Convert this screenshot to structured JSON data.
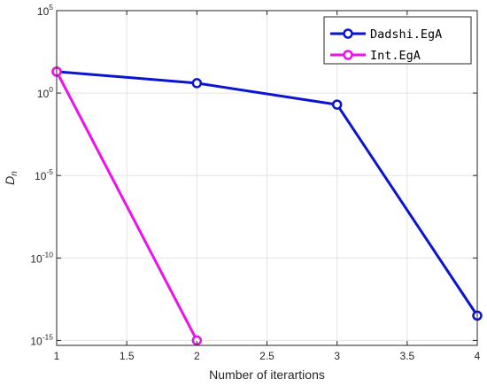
{
  "chart_data": {
    "type": "line",
    "xlabel": "Number of iterartions",
    "ylabel": "D",
    "ylabel_subscript": "n",
    "x_ticks": [
      1,
      1.5,
      2,
      2.5,
      3,
      3.5,
      4
    ],
    "x_tick_labels": [
      "1",
      "1.5",
      "2",
      "2.5",
      "3",
      "3.5",
      "4"
    ],
    "y_scale": "log",
    "xlim": [
      1,
      4
    ],
    "ylim_exponent": [
      -15.3,
      5
    ],
    "y_tick_exponents": [
      5,
      0,
      -5,
      -10,
      -15
    ],
    "y_tick_labels": [
      {
        "base": "10",
        "exp": "5"
      },
      {
        "base": "10",
        "exp": "0"
      },
      {
        "base": "10",
        "exp": "-5"
      },
      {
        "base": "10",
        "exp": "-10"
      },
      {
        "base": "10",
        "exp": "-15"
      }
    ],
    "grid": true,
    "legend_position": "top-right",
    "series": [
      {
        "name": "Dadshi.EgA",
        "color": "#0a14d2",
        "marker": "circle",
        "x": [
          1,
          2,
          3,
          4
        ],
        "y": [
          20,
          4,
          0.2,
          3.2e-14
        ]
      },
      {
        "name": "Int.EgA",
        "color": "#ee11ee",
        "marker": "circle",
        "x": [
          1,
          2
        ],
        "y": [
          20,
          1e-15
        ]
      }
    ]
  }
}
